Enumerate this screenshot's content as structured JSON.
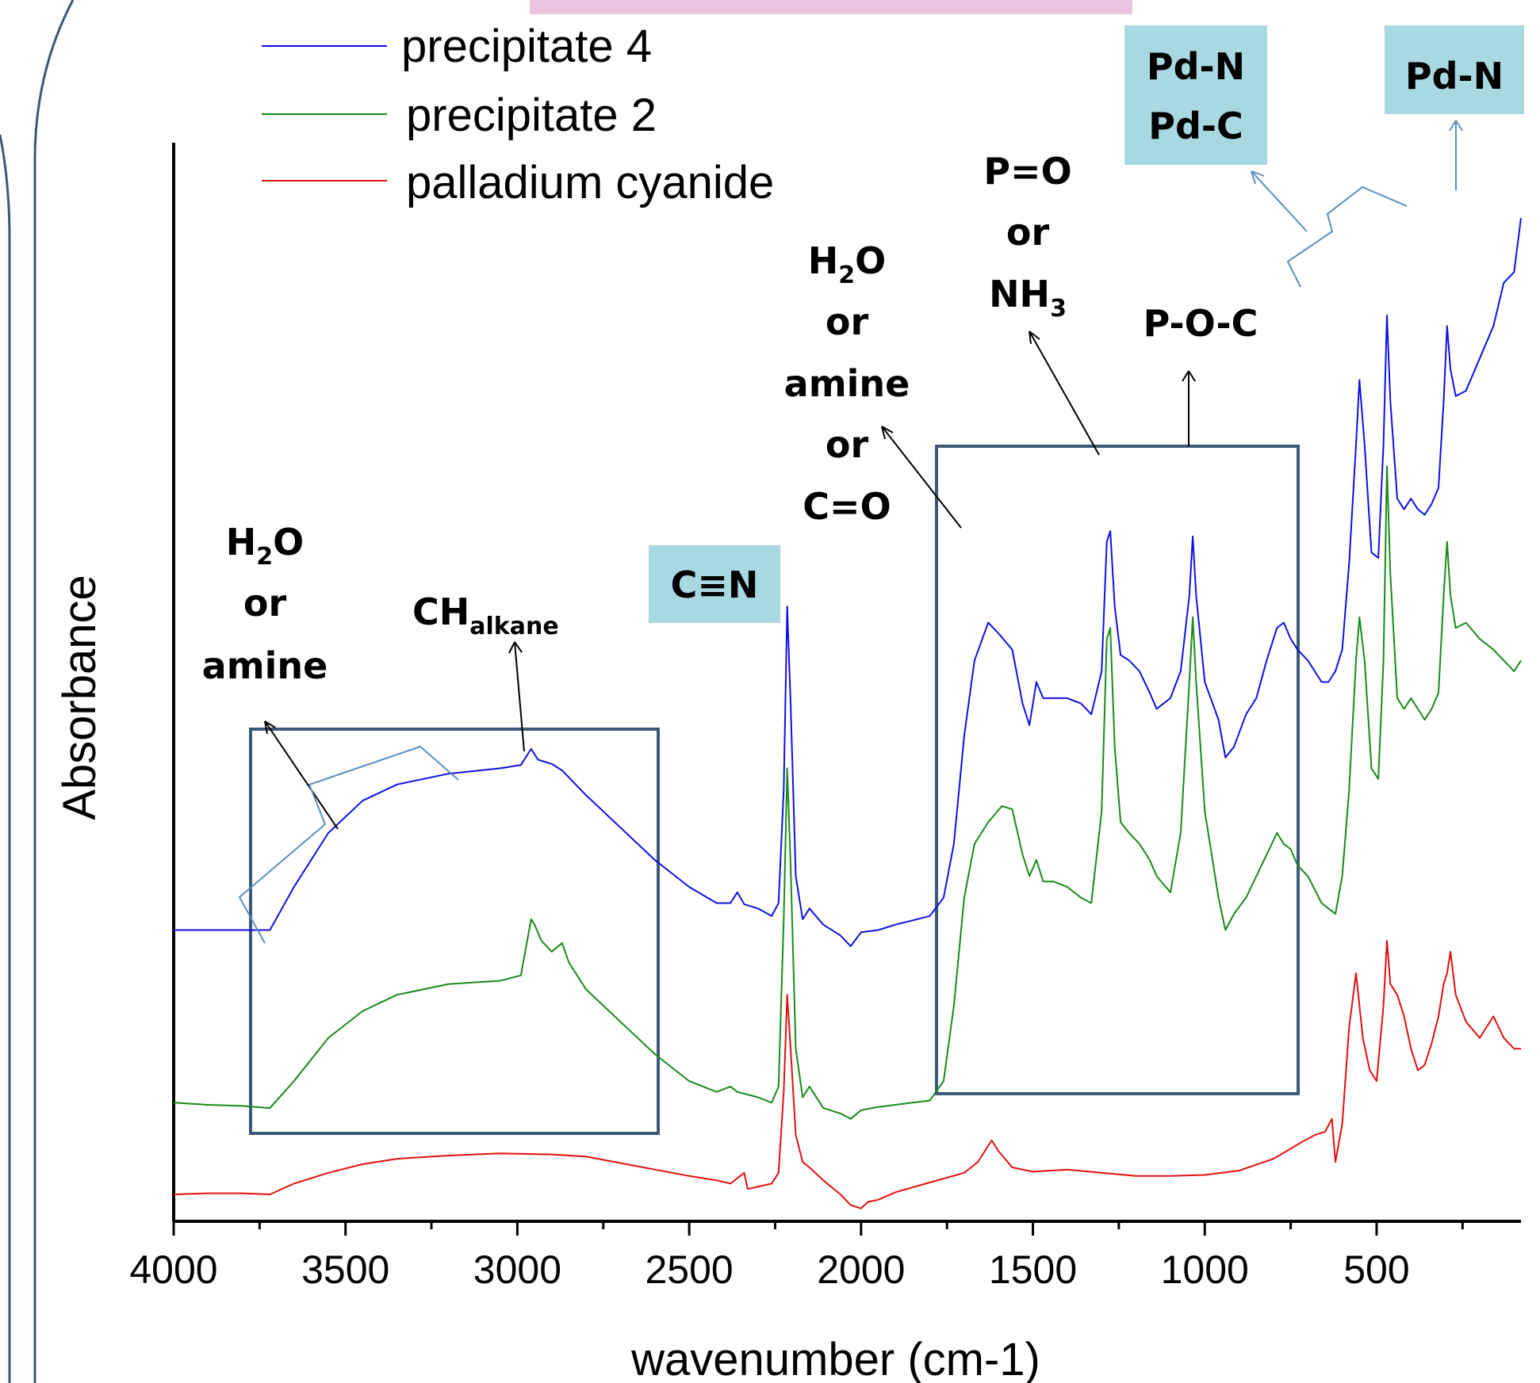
{
  "chart_data": {
    "type": "line",
    "title": "",
    "xlabel": "wavenumber (cm-1)",
    "ylabel": "Absorbance",
    "xlim": [
      4000,
      80
    ],
    "x_reversed": true,
    "ylim": [
      0,
      100
    ],
    "y_ticks_shown": false,
    "x_ticks": [
      4000,
      3500,
      3000,
      2500,
      2000,
      1500,
      1000,
      500
    ],
    "x_tick_labels": [
      "4000",
      "3500",
      "3000",
      "2500",
      "2000",
      "1500",
      "1000",
      "500"
    ],
    "grid": false,
    "legend": "top-left",
    "series": [
      {
        "name": "precipitate 4",
        "color": "#1010e0",
        "points": [
          [
            4000,
            27
          ],
          [
            3900,
            27
          ],
          [
            3800,
            27
          ],
          [
            3720,
            27
          ],
          [
            3650,
            31
          ],
          [
            3550,
            36
          ],
          [
            3450,
            39
          ],
          [
            3350,
            40.5
          ],
          [
            3200,
            41.5
          ],
          [
            3050,
            42
          ],
          [
            2990,
            42.3
          ],
          [
            2960,
            43.8
          ],
          [
            2940,
            42.8
          ],
          [
            2900,
            42.4
          ],
          [
            2870,
            41.8
          ],
          [
            2800,
            39.5
          ],
          [
            2700,
            36.5
          ],
          [
            2600,
            33.5
          ],
          [
            2500,
            31
          ],
          [
            2420,
            29.5
          ],
          [
            2380,
            29.5
          ],
          [
            2360,
            30.5
          ],
          [
            2340,
            29.4
          ],
          [
            2300,
            29
          ],
          [
            2260,
            28.3
          ],
          [
            2240,
            29.5
          ],
          [
            2225,
            40
          ],
          [
            2215,
            57
          ],
          [
            2205,
            48
          ],
          [
            2190,
            32
          ],
          [
            2170,
            28
          ],
          [
            2150,
            29
          ],
          [
            2110,
            27.5
          ],
          [
            2060,
            26.5
          ],
          [
            2030,
            25.5
          ],
          [
            2000,
            26.8
          ],
          [
            1950,
            27
          ],
          [
            1900,
            27.5
          ],
          [
            1800,
            28.3
          ],
          [
            1760,
            30
          ],
          [
            1730,
            35
          ],
          [
            1700,
            45
          ],
          [
            1670,
            52
          ],
          [
            1630,
            55.5
          ],
          [
            1600,
            54.5
          ],
          [
            1560,
            53
          ],
          [
            1530,
            48
          ],
          [
            1510,
            46
          ],
          [
            1490,
            50
          ],
          [
            1470,
            48.5
          ],
          [
            1440,
            48.5
          ],
          [
            1400,
            48.5
          ],
          [
            1360,
            48
          ],
          [
            1330,
            47
          ],
          [
            1300,
            51
          ],
          [
            1285,
            63
          ],
          [
            1275,
            64
          ],
          [
            1262,
            57
          ],
          [
            1245,
            52.5
          ],
          [
            1220,
            52
          ],
          [
            1190,
            51
          ],
          [
            1160,
            49
          ],
          [
            1140,
            47.5
          ],
          [
            1100,
            48.5
          ],
          [
            1070,
            51
          ],
          [
            1045,
            58
          ],
          [
            1035,
            63.5
          ],
          [
            1025,
            58
          ],
          [
            1000,
            50
          ],
          [
            960,
            46.5
          ],
          [
            940,
            43
          ],
          [
            915,
            44
          ],
          [
            880,
            47
          ],
          [
            850,
            48.5
          ],
          [
            820,
            52
          ],
          [
            790,
            55
          ],
          [
            770,
            55.5
          ],
          [
            750,
            54
          ],
          [
            730,
            53
          ],
          [
            700,
            52
          ],
          [
            660,
            50
          ],
          [
            640,
            50
          ],
          [
            620,
            51
          ],
          [
            600,
            53
          ],
          [
            580,
            61
          ],
          [
            560,
            72
          ],
          [
            550,
            78
          ],
          [
            535,
            72
          ],
          [
            515,
            62
          ],
          [
            495,
            61.5
          ],
          [
            480,
            72
          ],
          [
            470,
            84
          ],
          [
            460,
            76
          ],
          [
            440,
            67
          ],
          [
            420,
            66
          ],
          [
            400,
            67
          ],
          [
            380,
            66
          ],
          [
            360,
            65.5
          ],
          [
            340,
            66.5
          ],
          [
            320,
            68
          ],
          [
            305,
            76
          ],
          [
            295,
            83
          ],
          [
            285,
            79
          ],
          [
            270,
            76.5
          ],
          [
            240,
            77
          ],
          [
            200,
            80
          ],
          [
            160,
            83
          ],
          [
            130,
            87
          ],
          [
            100,
            88
          ],
          [
            80,
            93
          ]
        ]
      },
      {
        "name": "precipitate 2",
        "color": "#1a8a1a",
        "points": [
          [
            4000,
            11
          ],
          [
            3900,
            10.8
          ],
          [
            3800,
            10.7
          ],
          [
            3720,
            10.5
          ],
          [
            3650,
            13
          ],
          [
            3550,
            17
          ],
          [
            3450,
            19.5
          ],
          [
            3350,
            21
          ],
          [
            3200,
            22
          ],
          [
            3050,
            22.3
          ],
          [
            2990,
            22.8
          ],
          [
            2960,
            28
          ],
          [
            2950,
            27.5
          ],
          [
            2930,
            26
          ],
          [
            2900,
            25
          ],
          [
            2870,
            25.8
          ],
          [
            2850,
            24
          ],
          [
            2800,
            21.5
          ],
          [
            2700,
            18.5
          ],
          [
            2600,
            15.5
          ],
          [
            2500,
            13
          ],
          [
            2420,
            12
          ],
          [
            2380,
            12.5
          ],
          [
            2360,
            12
          ],
          [
            2300,
            11.5
          ],
          [
            2260,
            11
          ],
          [
            2240,
            12.5
          ],
          [
            2225,
            28
          ],
          [
            2215,
            42
          ],
          [
            2205,
            33
          ],
          [
            2190,
            16
          ],
          [
            2170,
            11.5
          ],
          [
            2150,
            12.5
          ],
          [
            2110,
            10.5
          ],
          [
            2060,
            10
          ],
          [
            2030,
            9.5
          ],
          [
            2000,
            10.3
          ],
          [
            1950,
            10.6
          ],
          [
            1900,
            10.8
          ],
          [
            1800,
            11.2
          ],
          [
            1760,
            13
          ],
          [
            1730,
            20
          ],
          [
            1700,
            30
          ],
          [
            1670,
            35
          ],
          [
            1630,
            37
          ],
          [
            1590,
            38.5
          ],
          [
            1560,
            38.2
          ],
          [
            1530,
            34
          ],
          [
            1510,
            32
          ],
          [
            1490,
            33.5
          ],
          [
            1470,
            31.5
          ],
          [
            1440,
            31.5
          ],
          [
            1400,
            31
          ],
          [
            1360,
            30
          ],
          [
            1330,
            29.5
          ],
          [
            1300,
            38
          ],
          [
            1285,
            54
          ],
          [
            1275,
            55
          ],
          [
            1262,
            44
          ],
          [
            1245,
            37
          ],
          [
            1220,
            36
          ],
          [
            1190,
            35
          ],
          [
            1160,
            33.5
          ],
          [
            1140,
            32
          ],
          [
            1100,
            30.5
          ],
          [
            1070,
            36
          ],
          [
            1045,
            50
          ],
          [
            1035,
            56
          ],
          [
            1025,
            50
          ],
          [
            1000,
            38
          ],
          [
            960,
            30
          ],
          [
            940,
            27
          ],
          [
            915,
            28.5
          ],
          [
            880,
            30
          ],
          [
            850,
            32
          ],
          [
            820,
            34
          ],
          [
            790,
            36
          ],
          [
            770,
            35
          ],
          [
            750,
            34.5
          ],
          [
            730,
            33
          ],
          [
            700,
            32
          ],
          [
            660,
            29.5
          ],
          [
            640,
            29
          ],
          [
            620,
            28.5
          ],
          [
            600,
            32
          ],
          [
            580,
            40
          ],
          [
            560,
            52
          ],
          [
            550,
            56
          ],
          [
            535,
            52
          ],
          [
            515,
            42
          ],
          [
            495,
            41
          ],
          [
            480,
            52
          ],
          [
            470,
            70
          ],
          [
            460,
            60
          ],
          [
            440,
            48.5
          ],
          [
            420,
            47.5
          ],
          [
            400,
            48.5
          ],
          [
            380,
            47.5
          ],
          [
            360,
            46.5
          ],
          [
            340,
            47.5
          ],
          [
            320,
            49
          ],
          [
            305,
            58
          ],
          [
            295,
            63
          ],
          [
            285,
            58
          ],
          [
            270,
            55
          ],
          [
            240,
            55.5
          ],
          [
            200,
            54
          ],
          [
            160,
            53
          ],
          [
            130,
            52
          ],
          [
            100,
            51
          ],
          [
            80,
            52
          ]
        ]
      },
      {
        "name": "palladium cyanide",
        "color": "#e01010",
        "points": [
          [
            4000,
            2.5
          ],
          [
            3900,
            2.6
          ],
          [
            3800,
            2.6
          ],
          [
            3720,
            2.5
          ],
          [
            3650,
            3.5
          ],
          [
            3550,
            4.5
          ],
          [
            3450,
            5.3
          ],
          [
            3350,
            5.8
          ],
          [
            3200,
            6.1
          ],
          [
            3050,
            6.3
          ],
          [
            2900,
            6.2
          ],
          [
            2800,
            6
          ],
          [
            2700,
            5.4
          ],
          [
            2600,
            4.8
          ],
          [
            2500,
            4.2
          ],
          [
            2420,
            3.8
          ],
          [
            2380,
            3.5
          ],
          [
            2340,
            4.5
          ],
          [
            2330,
            3
          ],
          [
            2300,
            3.2
          ],
          [
            2260,
            3.5
          ],
          [
            2240,
            4.5
          ],
          [
            2225,
            12
          ],
          [
            2215,
            21
          ],
          [
            2205,
            16
          ],
          [
            2190,
            8
          ],
          [
            2170,
            5.5
          ],
          [
            2150,
            5
          ],
          [
            2110,
            3.8
          ],
          [
            2060,
            2.5
          ],
          [
            2030,
            1.5
          ],
          [
            2000,
            1.2
          ],
          [
            1980,
            1.8
          ],
          [
            1950,
            2
          ],
          [
            1900,
            2.7
          ],
          [
            1800,
            3.6
          ],
          [
            1700,
            4.5
          ],
          [
            1660,
            5.5
          ],
          [
            1620,
            7.5
          ],
          [
            1600,
            6.5
          ],
          [
            1560,
            5
          ],
          [
            1500,
            4.6
          ],
          [
            1400,
            4.8
          ],
          [
            1300,
            4.5
          ],
          [
            1200,
            4.2
          ],
          [
            1100,
            4.2
          ],
          [
            1000,
            4.3
          ],
          [
            900,
            4.7
          ],
          [
            800,
            5.8
          ],
          [
            720,
            7.3
          ],
          [
            680,
            8
          ],
          [
            650,
            8.3
          ],
          [
            630,
            9.5
          ],
          [
            620,
            5.5
          ],
          [
            600,
            9
          ],
          [
            580,
            18
          ],
          [
            560,
            23
          ],
          [
            540,
            17
          ],
          [
            520,
            14
          ],
          [
            500,
            13
          ],
          [
            480,
            20
          ],
          [
            470,
            26
          ],
          [
            460,
            22
          ],
          [
            440,
            21
          ],
          [
            420,
            19
          ],
          [
            400,
            16
          ],
          [
            380,
            14
          ],
          [
            360,
            14.5
          ],
          [
            340,
            16.5
          ],
          [
            320,
            19
          ],
          [
            305,
            22
          ],
          [
            295,
            23
          ],
          [
            285,
            25
          ],
          [
            270,
            21
          ],
          [
            240,
            18.5
          ],
          [
            200,
            17
          ],
          [
            160,
            19
          ],
          [
            130,
            17
          ],
          [
            100,
            16
          ],
          [
            80,
            16
          ]
        ]
      }
    ],
    "annotations": {
      "h2o_amine_left": {
        "l1": "H",
        "l1_sub": "2",
        "l1_end": "O",
        "l2": "or",
        "l3": "amine"
      },
      "ch_alkane": {
        "main": "CH",
        "sub": "alkane"
      },
      "cn": "C≡N",
      "h2o_mid": {
        "l1": "H",
        "l1_sub": "2",
        "l1_end": "O",
        "l2": "or",
        "l3": "amine",
        "l4": "or",
        "l5": "C=O"
      },
      "po_nh3": {
        "l1": "P=O",
        "l2": "or",
        "l3": "NH",
        "l3_sub": "3"
      },
      "poc": "P-O-C",
      "pdn_pdc": {
        "l1": "Pd-N",
        "l2": "Pd-C"
      },
      "pdn": "Pd-N"
    },
    "colors": {
      "axis": "#000000",
      "box": "#3b5878",
      "label_bg": "#a8d8e0",
      "bracket": "#5a8fbf",
      "top_band": "#e8c4de"
    }
  }
}
